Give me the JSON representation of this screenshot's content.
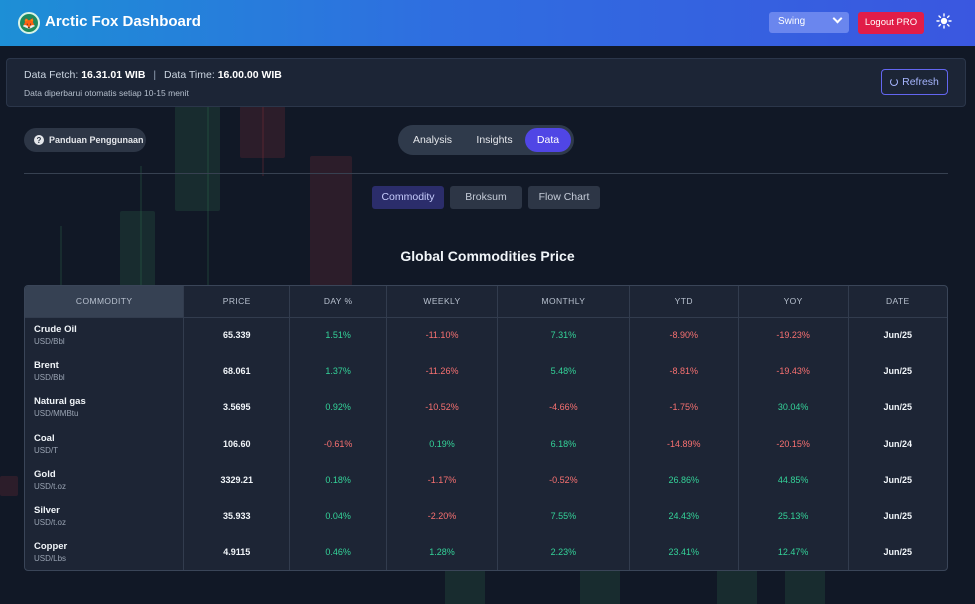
{
  "header": {
    "app_title": "Arctic Fox Dashboard",
    "mode_select": "Swing",
    "logout_label": "Logout PRO"
  },
  "info": {
    "fetch_label": "Data Fetch:",
    "fetch_time": "16.31.01 WIB",
    "data_label": "Data Time:",
    "data_time": "16.00.00 WIB",
    "note": "Data diperbarui otomatis setiap 10-15 menit",
    "refresh_label": "Refresh"
  },
  "guide_label": "Panduan Penggunaan",
  "main_tabs": [
    "Analysis",
    "Insights",
    "Data"
  ],
  "active_main_tab": "Data",
  "sub_tabs": [
    "Commodity",
    "Broksum",
    "Flow Chart"
  ],
  "active_sub_tab": "Commodity",
  "table": {
    "title": "Global Commodities Price",
    "columns": [
      "COMMODITY",
      "PRICE",
      "DAY %",
      "WEEKLY",
      "MONTHLY",
      "YTD",
      "YOY",
      "DATE"
    ],
    "rows": [
      {
        "name": "Crude Oil",
        "unit": "USD/Bbl",
        "price": "65.339",
        "day": "1.51%",
        "weekly": "-11.10%",
        "monthly": "7.31%",
        "ytd": "-8.90%",
        "yoy": "-19.23%",
        "date": "Jun/25"
      },
      {
        "name": "Brent",
        "unit": "USD/Bbl",
        "price": "68.061",
        "day": "1.37%",
        "weekly": "-11.26%",
        "monthly": "5.48%",
        "ytd": "-8.81%",
        "yoy": "-19.43%",
        "date": "Jun/25"
      },
      {
        "name": "Natural gas",
        "unit": "USD/MMBtu",
        "price": "3.5695",
        "day": "0.92%",
        "weekly": "-10.52%",
        "monthly": "-4.66%",
        "ytd": "-1.75%",
        "yoy": "30.04%",
        "date": "Jun/25"
      },
      {
        "name": "Coal",
        "unit": "USD/T",
        "price": "106.60",
        "day": "-0.61%",
        "weekly": "0.19%",
        "monthly": "6.18%",
        "ytd": "-14.89%",
        "yoy": "-20.15%",
        "date": "Jun/24"
      },
      {
        "name": "Gold",
        "unit": "USD/t.oz",
        "price": "3329.21",
        "day": "0.18%",
        "weekly": "-1.17%",
        "monthly": "-0.52%",
        "ytd": "26.86%",
        "yoy": "44.85%",
        "date": "Jun/25"
      },
      {
        "name": "Silver",
        "unit": "USD/t.oz",
        "price": "35.933",
        "day": "0.04%",
        "weekly": "-2.20%",
        "monthly": "7.55%",
        "ytd": "24.43%",
        "yoy": "25.13%",
        "date": "Jun/25"
      },
      {
        "name": "Copper",
        "unit": "USD/Lbs",
        "price": "4.9115",
        "day": "0.46%",
        "weekly": "1.28%",
        "monthly": "2.23%",
        "ytd": "23.41%",
        "yoy": "12.47%",
        "date": "Jun/25"
      }
    ]
  },
  "colors": {
    "positive": "#34d399",
    "negative": "#f87171",
    "accent": "#5046e5",
    "logout": "#e11d48"
  },
  "icons": {
    "logo": "fox-logo-icon",
    "theme": "sun-icon",
    "refresh": "refresh-icon",
    "guide": "question-icon",
    "select": "chevron-down-icon"
  }
}
